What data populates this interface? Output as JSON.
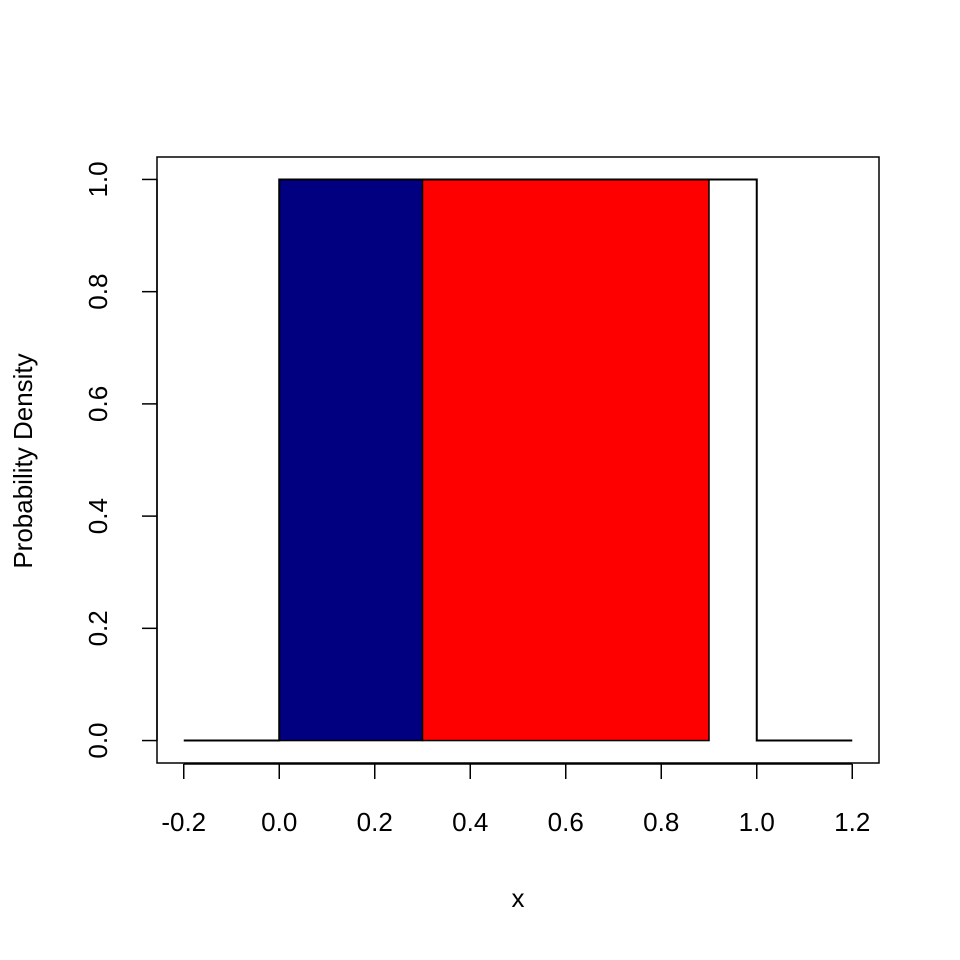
{
  "chart_data": {
    "type": "line",
    "xlabel": "x",
    "ylabel": "Probability Density",
    "x": [
      -0.2,
      0,
      0,
      1,
      1,
      1.2
    ],
    "values": [
      0,
      0,
      1,
      1,
      0,
      0
    ],
    "color": "#000000",
    "regions": [
      {
        "x0": 0,
        "x1": 0.3,
        "value": 1,
        "color": "#000080"
      },
      {
        "x0": 0.3,
        "x1": 0.9,
        "value": 1,
        "color": "#ff0000"
      }
    ],
    "xlim": [
      -0.256,
      1.256
    ],
    "ylim": [
      -0.04,
      1.04
    ],
    "xticks": [
      -0.2,
      {
        "value": 0,
        "label": "0.0"
      },
      0.2,
      0.4,
      0.6,
      0.8,
      {
        "value": 1,
        "label": "1.0"
      },
      1.2
    ],
    "yticks": [
      {
        "value": 0,
        "label": "0.0"
      },
      {
        "value": 0.2,
        "label": "0.2"
      },
      {
        "value": 0.4,
        "label": "0.4"
      },
      {
        "value": 0.6,
        "label": "0.6"
      },
      {
        "value": 0.8,
        "label": "0.8"
      },
      {
        "value": 1,
        "label": "1.0"
      }
    ],
    "grid": false
  }
}
